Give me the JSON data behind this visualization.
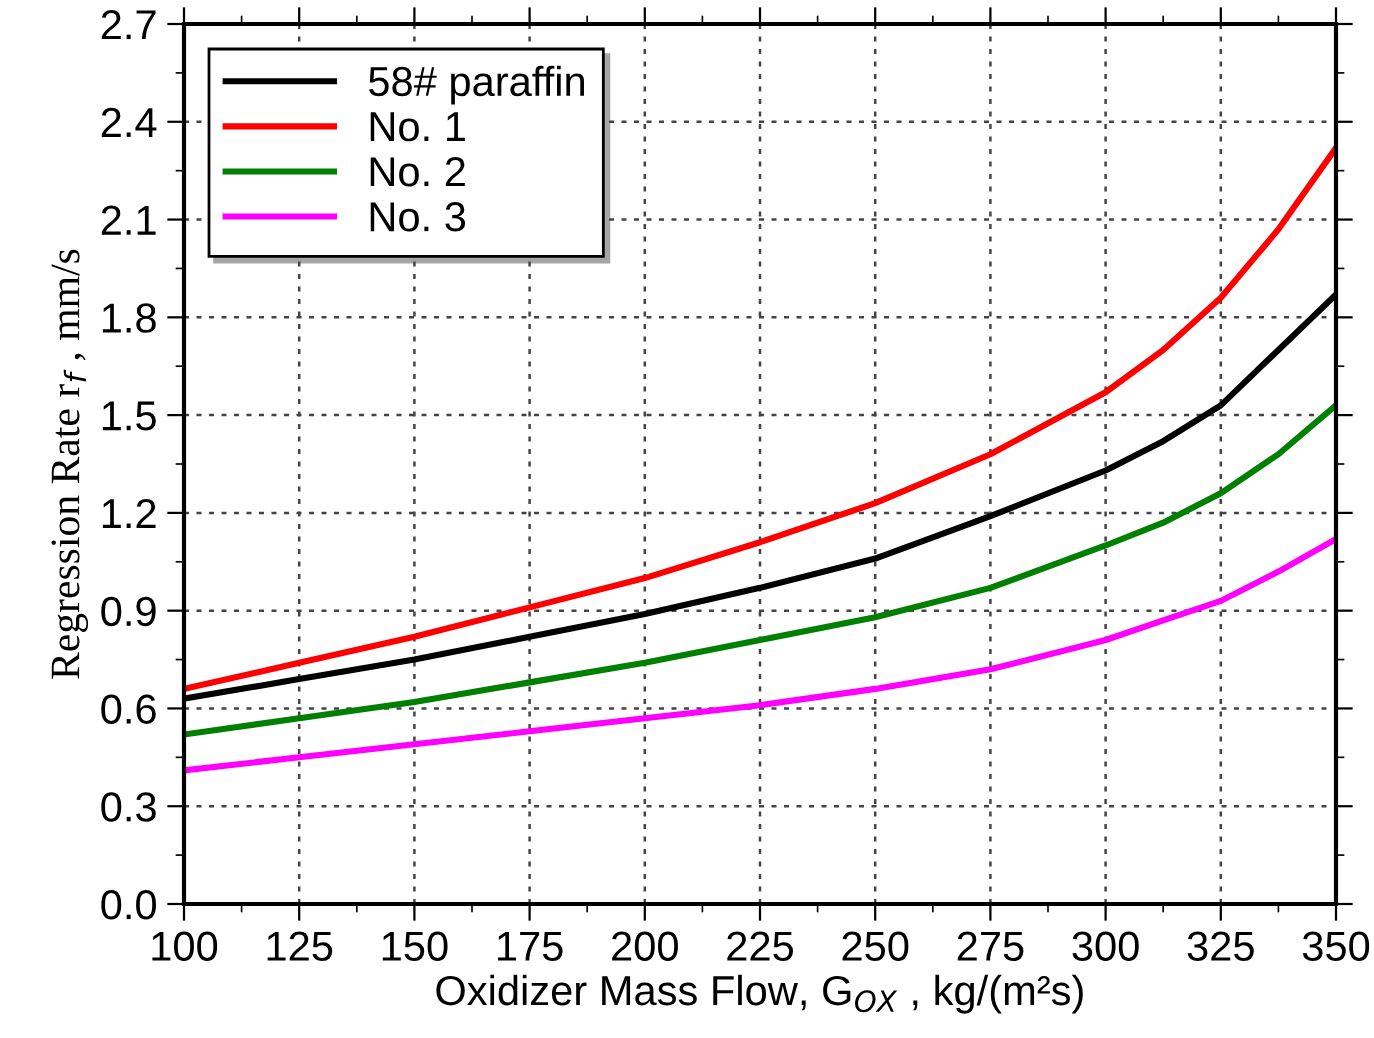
{
  "chart_data": {
    "type": "line",
    "xlabel": "Oxidizer Mass Flow, G$_{OX}$ , kg/(m²s)",
    "ylabel": "Regression Rate r$_{f}$ , mm/s",
    "x": [
      100,
      125,
      150,
      175,
      200,
      225,
      250,
      275,
      300,
      312.5,
      325,
      337.5,
      350
    ],
    "series": [
      {
        "name": "58# paraffin",
        "color": "#000000",
        "values": [
          0.63,
          0.69,
          0.75,
          0.82,
          0.89,
          0.97,
          1.06,
          1.19,
          1.33,
          1.42,
          1.53,
          1.7,
          1.87
        ]
      },
      {
        "name": "No. 1",
        "color": "#ff0000",
        "values": [
          0.66,
          0.74,
          0.82,
          0.91,
          1.0,
          1.11,
          1.23,
          1.38,
          1.57,
          1.7,
          1.86,
          2.07,
          2.32
        ]
      },
      {
        "name": "No. 2",
        "color": "#008000",
        "values": [
          0.52,
          0.57,
          0.62,
          0.68,
          0.74,
          0.81,
          0.88,
          0.97,
          1.1,
          1.17,
          1.26,
          1.38,
          1.53
        ]
      },
      {
        "name": "No. 3",
        "color": "#ff00ff",
        "values": [
          0.41,
          0.45,
          0.49,
          0.53,
          0.57,
          0.61,
          0.66,
          0.72,
          0.81,
          0.87,
          0.93,
          1.02,
          1.12
        ]
      }
    ],
    "xlim": [
      100,
      350
    ],
    "xticks": [
      100,
      125,
      150,
      175,
      200,
      225,
      250,
      275,
      300,
      325,
      350
    ],
    "ylim": [
      0,
      2.7
    ],
    "yticks": [
      {
        "value": 0,
        "label": "0.0"
      },
      {
        "value": 0.3,
        "label": "0.3"
      },
      {
        "value": 0.6,
        "label": "0.6"
      },
      {
        "value": 0.9,
        "label": "0.9"
      },
      {
        "value": 1.2,
        "label": "1.2"
      },
      {
        "value": 1.5,
        "label": "1.5"
      },
      {
        "value": 1.8,
        "label": "1.8"
      },
      {
        "value": 2.1,
        "label": "2.1"
      },
      {
        "value": 2.4,
        "label": "2.4"
      },
      {
        "value": 2.7,
        "label": "2.7"
      }
    ],
    "grid": true,
    "legend": "top left",
    "marker": "none",
    "line_style": "solid"
  }
}
